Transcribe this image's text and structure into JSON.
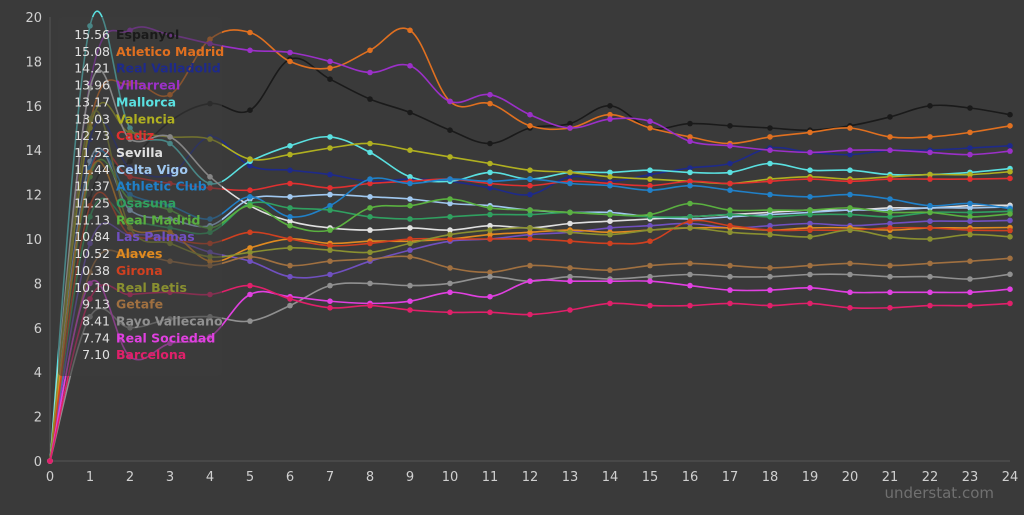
{
  "watermark": "understat.com",
  "chart_data": {
    "type": "line",
    "x": [
      0,
      1,
      2,
      3,
      4,
      5,
      6,
      7,
      8,
      9,
      10,
      11,
      12,
      13,
      14,
      15,
      16,
      17,
      18,
      19,
      20,
      21,
      22,
      23,
      24
    ],
    "xlim": [
      0,
      24
    ],
    "ylim": [
      0,
      20
    ],
    "yticks": [
      0,
      2,
      4,
      6,
      8,
      10,
      12,
      14,
      16,
      18,
      20
    ],
    "grid": false,
    "legend_position": "top-left",
    "series": [
      {
        "name": "Espanyol",
        "legend_value": "15.56",
        "color": "#1a1a1a",
        "values": [
          0,
          11.8,
          13.5,
          15.3,
          16.1,
          15.8,
          18.1,
          17.2,
          16.3,
          15.7,
          14.9,
          14.3,
          15.0,
          15.2,
          16.0,
          15.0,
          15.2,
          15.1,
          15.0,
          14.9,
          15.1,
          15.5,
          16.0,
          15.9,
          15.6
        ]
      },
      {
        "name": "Atletico Madrid",
        "legend_value": "15.08",
        "color": "#e07020",
        "values": [
          0,
          15.2,
          17.0,
          16.5,
          19.0,
          19.3,
          18.0,
          17.7,
          18.5,
          19.4,
          16.2,
          16.1,
          15.1,
          15.0,
          15.6,
          15.0,
          14.6,
          14.3,
          14.6,
          14.8,
          15.0,
          14.6,
          14.6,
          14.8,
          15.1
        ]
      },
      {
        "name": "Real Valladolid",
        "legend_value": "14.21",
        "color": "#1e2a8a",
        "values": [
          0,
          14.5,
          13.2,
          12.9,
          14.6,
          13.3,
          13.1,
          12.9,
          12.6,
          12.7,
          12.6,
          12.3,
          12.0,
          12.8,
          12.6,
          12.9,
          13.2,
          13.4,
          14.1,
          13.9,
          13.8,
          14.0,
          14.0,
          14.1,
          14.2
        ]
      },
      {
        "name": "Villarreal",
        "legend_value": "13.96",
        "color": "#9b30c8",
        "values": [
          0,
          17.0,
          19.4,
          19.2,
          18.8,
          18.5,
          18.4,
          18.0,
          17.5,
          17.8,
          16.2,
          16.5,
          15.6,
          15.0,
          15.4,
          15.3,
          14.4,
          14.2,
          14.0,
          13.9,
          14.0,
          14.0,
          13.9,
          13.8,
          13.96
        ]
      },
      {
        "name": "Mallorca",
        "legend_value": "13.17",
        "color": "#5ae0e0",
        "values": [
          0,
          19.6,
          15.0,
          14.3,
          12.5,
          13.5,
          14.2,
          14.6,
          13.9,
          12.8,
          12.6,
          13.0,
          12.7,
          13.0,
          13.0,
          13.1,
          13.0,
          13.0,
          13.4,
          13.1,
          13.1,
          12.9,
          12.9,
          13.0,
          13.17
        ]
      },
      {
        "name": "Valencia",
        "legend_value": "13.03",
        "color": "#b0b020",
        "values": [
          0,
          15.0,
          14.8,
          14.6,
          14.5,
          13.6,
          13.8,
          14.1,
          14.3,
          14.0,
          13.7,
          13.4,
          13.1,
          13.0,
          12.8,
          12.7,
          12.6,
          12.5,
          12.7,
          12.8,
          12.7,
          12.8,
          12.9,
          12.9,
          13.03
        ]
      },
      {
        "name": "Cadiz",
        "legend_value": "12.73",
        "color": "#e03030",
        "values": [
          0,
          13.0,
          12.8,
          12.5,
          12.3,
          12.2,
          12.5,
          12.3,
          12.5,
          12.6,
          12.7,
          12.5,
          12.4,
          12.6,
          12.5,
          12.4,
          12.6,
          12.5,
          12.6,
          12.7,
          12.6,
          12.7,
          12.7,
          12.7,
          12.73
        ]
      },
      {
        "name": "Sevilla",
        "legend_value": "11.52",
        "color": "#e0e0e0",
        "values": [
          0,
          16.8,
          14.5,
          14.6,
          12.8,
          11.5,
          10.8,
          10.5,
          10.4,
          10.5,
          10.4,
          10.6,
          10.5,
          10.7,
          10.8,
          10.9,
          11.0,
          11.1,
          11.2,
          11.3,
          11.3,
          11.4,
          11.4,
          11.5,
          11.52
        ]
      },
      {
        "name": "Celta Vigo",
        "legend_value": "11.44",
        "color": "#a0c8f0",
        "values": [
          0,
          13.5,
          11.3,
          10.9,
          10.6,
          11.8,
          11.9,
          12.0,
          11.9,
          11.8,
          11.6,
          11.5,
          11.3,
          11.2,
          11.2,
          11.0,
          10.9,
          11.0,
          11.1,
          11.2,
          11.3,
          11.3,
          11.4,
          11.4,
          11.44
        ]
      },
      {
        "name": "Athletic Club",
        "legend_value": "11.37",
        "color": "#2080c8",
        "values": [
          0,
          13.2,
          12.0,
          11.5,
          10.9,
          11.9,
          11.0,
          11.5,
          12.7,
          12.5,
          12.7,
          12.6,
          12.7,
          12.5,
          12.4,
          12.2,
          12.4,
          12.2,
          12.0,
          11.9,
          12.0,
          11.8,
          11.5,
          11.6,
          11.37
        ]
      },
      {
        "name": "Osasuna",
        "legend_value": "11.25",
        "color": "#30a060",
        "values": [
          0,
          11.0,
          10.8,
          10.5,
          10.3,
          11.6,
          11.4,
          11.3,
          11.0,
          10.9,
          11.0,
          11.1,
          11.1,
          11.2,
          11.1,
          11.0,
          11.0,
          11.1,
          11.0,
          11.1,
          11.1,
          11.0,
          11.2,
          11.2,
          11.25
        ]
      },
      {
        "name": "Real Madrid",
        "legend_value": "11.13",
        "color": "#5ab040",
        "values": [
          0,
          12.8,
          11.8,
          11.3,
          10.5,
          11.5,
          10.6,
          10.4,
          11.4,
          11.5,
          11.8,
          11.4,
          11.3,
          11.2,
          11.1,
          11.1,
          11.6,
          11.3,
          11.3,
          11.3,
          11.4,
          11.2,
          11.2,
          11.0,
          11.13
        ]
      },
      {
        "name": "Las Palmas",
        "legend_value": "10.84",
        "color": "#7050c0",
        "values": [
          0,
          9.8,
          10.2,
          10.0,
          9.4,
          9.0,
          8.3,
          8.4,
          9.0,
          9.5,
          9.9,
          10.0,
          10.2,
          10.3,
          10.5,
          10.6,
          10.7,
          10.5,
          10.6,
          10.7,
          10.6,
          10.7,
          10.8,
          10.8,
          10.84
        ]
      },
      {
        "name": "Alaves",
        "legend_value": "10.52",
        "color": "#e08a20",
        "values": [
          0,
          13.0,
          10.5,
          10.3,
          9.0,
          9.6,
          10.0,
          9.8,
          9.9,
          9.9,
          10.0,
          10.2,
          10.3,
          10.4,
          10.3,
          10.4,
          10.5,
          10.5,
          10.4,
          10.5,
          10.5,
          10.4,
          10.5,
          10.5,
          10.52
        ]
      },
      {
        "name": "Girona",
        "legend_value": "10.38",
        "color": "#d04020",
        "values": [
          0,
          11.5,
          10.2,
          10.0,
          9.8,
          10.3,
          10.0,
          9.7,
          9.8,
          10.0,
          10.0,
          10.0,
          10.0,
          9.9,
          9.8,
          9.9,
          10.8,
          10.6,
          10.4,
          10.4,
          10.4,
          10.5,
          10.5,
          10.4,
          10.38
        ]
      },
      {
        "name": "Real Betis",
        "legend_value": "10.10",
        "color": "#8a9030",
        "values": [
          0,
          15.4,
          10.5,
          9.8,
          9.2,
          9.4,
          9.6,
          9.5,
          9.4,
          9.8,
          10.2,
          10.4,
          10.5,
          10.3,
          10.2,
          10.4,
          10.5,
          10.3,
          10.2,
          10.1,
          10.4,
          10.1,
          10.0,
          10.2,
          10.1
        ]
      },
      {
        "name": "Getafe",
        "legend_value": "9.13",
        "color": "#a07040",
        "values": [
          0,
          8.5,
          9.3,
          9.0,
          8.8,
          9.2,
          8.8,
          9.0,
          9.1,
          9.2,
          8.7,
          8.5,
          8.8,
          8.7,
          8.6,
          8.8,
          8.9,
          8.8,
          8.7,
          8.8,
          8.9,
          8.8,
          8.9,
          9.0,
          9.13
        ]
      },
      {
        "name": "Rayo Vallecano",
        "legend_value": "8.41",
        "color": "#909090",
        "values": [
          0,
          6.5,
          6.0,
          6.4,
          6.5,
          6.3,
          7.0,
          7.9,
          8.0,
          7.9,
          8.0,
          8.3,
          8.1,
          8.3,
          8.2,
          8.3,
          8.4,
          8.3,
          8.3,
          8.4,
          8.4,
          8.3,
          8.3,
          8.2,
          8.41
        ]
      },
      {
        "name": "Real Sociedad",
        "legend_value": "7.74",
        "color": "#e040e0",
        "values": [
          0,
          8.0,
          4.7,
          5.3,
          5.6,
          7.5,
          7.4,
          7.2,
          7.1,
          7.2,
          7.6,
          7.4,
          8.1,
          8.1,
          8.1,
          8.1,
          7.9,
          7.7,
          7.7,
          7.8,
          7.6,
          7.6,
          7.6,
          7.6,
          7.74
        ]
      },
      {
        "name": "Barcelona",
        "legend_value": "7.10",
        "color": "#e0206a",
        "values": [
          0,
          7.3,
          7.5,
          7.6,
          7.5,
          7.9,
          7.3,
          6.9,
          7.0,
          6.8,
          6.7,
          6.7,
          6.6,
          6.8,
          7.1,
          7.0,
          7.0,
          7.1,
          7.0,
          7.1,
          6.9,
          6.9,
          7.0,
          7.0,
          7.1
        ]
      }
    ]
  }
}
